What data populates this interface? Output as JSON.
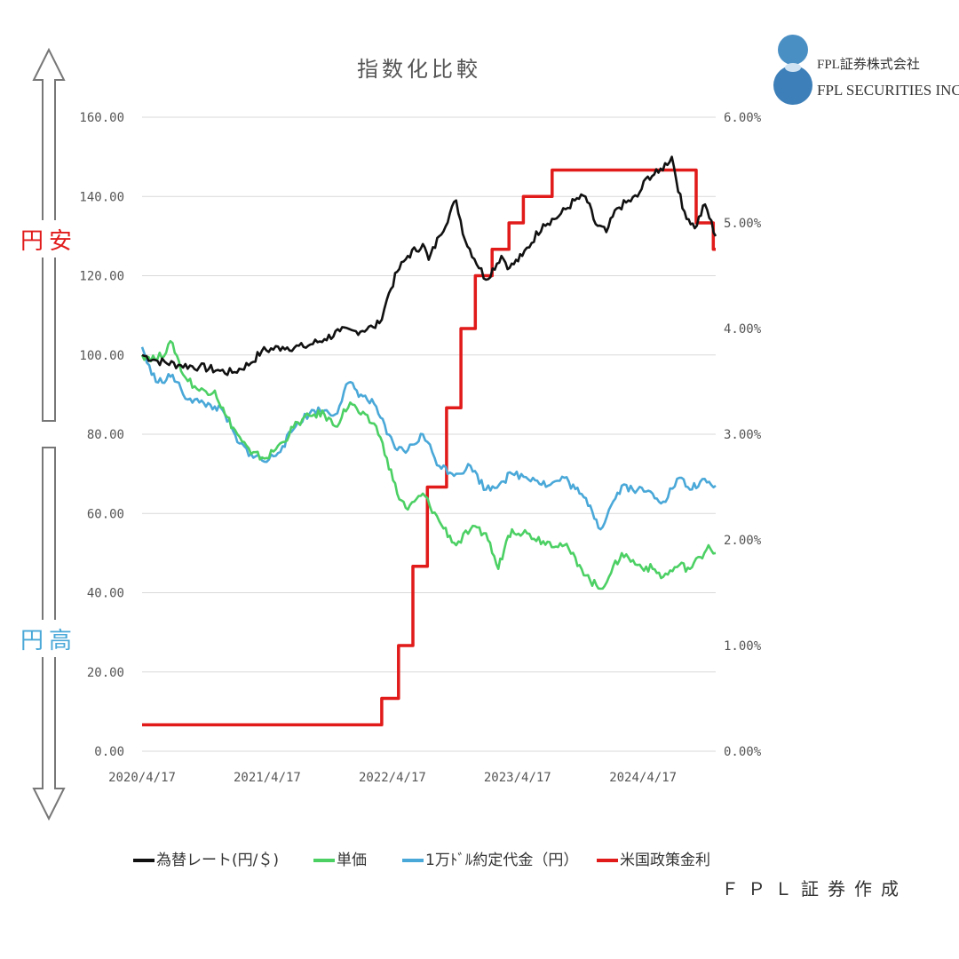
{
  "chart_data": {
    "type": "line",
    "title": "指数化比較",
    "x_ticks": [
      "2020/4/17",
      "2021/4/17",
      "2022/4/17",
      "2023/4/17",
      "2024/4/17"
    ],
    "x_range": [
      "2020/4/17",
      "2024/11/15"
    ],
    "y_left": {
      "range": [
        0,
        160
      ],
      "ticks": [
        "0.00",
        "20.00",
        "40.00",
        "60.00",
        "80.00",
        "100.00",
        "120.00",
        "140.00",
        "160.00"
      ]
    },
    "y_right": {
      "range": [
        0,
        6
      ],
      "ticks": [
        "0.00%",
        "1.00%",
        "2.00%",
        "3.00%",
        "4.00%",
        "5.00%",
        "6.00%"
      ]
    },
    "grid": true,
    "legend_position": "bottom",
    "series": [
      {
        "name": "為替レート(円/＄)",
        "color": "#111111",
        "axis": "left",
        "points": [
          [
            "2020/4/17",
            100
          ],
          [
            "2020/6/1",
            98.5
          ],
          [
            "2020/8/1",
            97.5
          ],
          [
            "2020/10/1",
            97
          ],
          [
            "2020/12/1",
            96
          ],
          [
            "2021/1/5",
            95.5
          ],
          [
            "2021/3/1",
            98
          ],
          [
            "2021/4/1",
            101
          ],
          [
            "2021/6/1",
            102
          ],
          [
            "2021/8/1",
            102
          ],
          [
            "2021/10/1",
            104
          ],
          [
            "2021/11/15",
            106
          ],
          [
            "2022/1/1",
            106
          ],
          [
            "2022/2/20",
            107
          ],
          [
            "2022/3/10",
            108
          ],
          [
            "2022/4/1",
            114
          ],
          [
            "2022/5/1",
            121
          ],
          [
            "2022/6/1",
            125
          ],
          [
            "2022/7/15",
            128
          ],
          [
            "2022/8/1",
            124
          ],
          [
            "2022/9/1",
            130
          ],
          [
            "2022/10/20",
            139
          ],
          [
            "2022/11/15",
            129
          ],
          [
            "2023/1/15",
            119
          ],
          [
            "2023/3/1",
            125
          ],
          [
            "2023/3/25",
            122
          ],
          [
            "2023/5/1",
            125
          ],
          [
            "2023/7/1",
            133
          ],
          [
            "2023/8/15",
            135
          ],
          [
            "2023/10/1",
            139
          ],
          [
            "2023/11/1",
            140
          ],
          [
            "2023/12/1",
            133
          ],
          [
            "2024/1/1",
            131
          ],
          [
            "2024/2/1",
            137
          ],
          [
            "2024/4/1",
            140
          ],
          [
            "2024/5/1",
            145
          ],
          [
            "2024/6/1",
            146
          ],
          [
            "2024/7/10",
            150
          ],
          [
            "2024/8/10",
            137
          ],
          [
            "2024/9/15",
            132
          ],
          [
            "2024/10/15",
            138
          ],
          [
            "2024/11/15",
            130
          ]
        ]
      },
      {
        "name": "単価",
        "color": "#4cd064",
        "axis": "left",
        "points": [
          [
            "2020/4/17",
            100
          ],
          [
            "2020/6/1",
            99
          ],
          [
            "2020/7/15",
            103
          ],
          [
            "2020/8/15",
            95
          ],
          [
            "2020/10/1",
            91
          ],
          [
            "2020/11/15",
            91
          ],
          [
            "2020/12/15",
            85
          ],
          [
            "2021/1/20",
            80
          ],
          [
            "2021/3/1",
            75
          ],
          [
            "2021/4/15",
            74
          ],
          [
            "2021/6/1",
            78
          ],
          [
            "2021/7/15",
            83
          ],
          [
            "2021/9/1",
            85
          ],
          [
            "2021/10/1",
            85
          ],
          [
            "2021/11/1",
            82
          ],
          [
            "2021/12/15",
            88
          ],
          [
            "2022/1/15",
            85
          ],
          [
            "2022/3/1",
            82
          ],
          [
            "2022/4/1",
            74
          ],
          [
            "2022/5/1",
            65
          ],
          [
            "2022/6/1",
            61
          ],
          [
            "2022/7/15",
            65
          ],
          [
            "2022/9/1",
            58
          ],
          [
            "2022/10/20",
            52
          ],
          [
            "2022/12/1",
            56
          ],
          [
            "2023/1/15",
            55
          ],
          [
            "2023/2/20",
            46
          ],
          [
            "2023/3/15",
            53
          ],
          [
            "2023/4/1",
            56
          ],
          [
            "2023/5/15",
            55
          ],
          [
            "2023/7/1",
            53
          ],
          [
            "2023/9/1",
            52
          ],
          [
            "2023/10/15",
            47
          ],
          [
            "2023/11/15",
            43
          ],
          [
            "2023/12/15",
            41
          ],
          [
            "2024/1/15",
            45
          ],
          [
            "2024/2/15",
            50
          ],
          [
            "2024/4/1",
            47
          ],
          [
            "2024/5/15",
            46
          ],
          [
            "2024/6/15",
            44
          ],
          [
            "2024/8/1",
            47
          ],
          [
            "2024/9/1",
            46
          ],
          [
            "2024/10/1",
            49
          ],
          [
            "2024/10/25",
            52
          ],
          [
            "2024/11/15",
            50
          ]
        ]
      },
      {
        "name": "1万ﾄﾞﾙ約定代金（円）",
        "color": "#4aa8d8",
        "axis": "left",
        "points": [
          [
            "2020/4/17",
            102
          ],
          [
            "2020/5/15",
            95
          ],
          [
            "2020/6/15",
            93
          ],
          [
            "2020/7/15",
            95
          ],
          [
            "2020/8/15",
            90
          ],
          [
            "2020/10/1",
            88
          ],
          [
            "2020/11/15",
            87
          ],
          [
            "2020/12/15",
            85
          ],
          [
            "2021/1/20",
            78
          ],
          [
            "2021/3/1",
            75
          ],
          [
            "2021/4/15",
            73
          ],
          [
            "2021/6/1",
            77
          ],
          [
            "2021/7/15",
            83
          ],
          [
            "2021/9/1",
            86
          ],
          [
            "2021/10/1",
            86
          ],
          [
            "2021/11/1",
            85
          ],
          [
            "2021/12/10",
            93
          ],
          [
            "2022/1/15",
            90
          ],
          [
            "2022/3/1",
            87
          ],
          [
            "2022/4/1",
            80
          ],
          [
            "2022/5/1",
            76
          ],
          [
            "2022/6/1",
            76
          ],
          [
            "2022/7/15",
            80
          ],
          [
            "2022/9/1",
            72
          ],
          [
            "2022/10/20",
            70
          ],
          [
            "2022/12/1",
            72
          ],
          [
            "2023/1/15",
            66
          ],
          [
            "2023/3/1",
            68
          ],
          [
            "2023/4/1",
            70
          ],
          [
            "2023/6/1",
            69
          ],
          [
            "2023/7/15",
            67
          ],
          [
            "2023/9/1",
            69
          ],
          [
            "2023/10/15",
            65
          ],
          [
            "2023/11/15",
            62
          ],
          [
            "2023/12/15",
            56
          ],
          [
            "2024/1/15",
            62
          ],
          [
            "2024/2/15",
            67
          ],
          [
            "2024/4/1",
            66
          ],
          [
            "2024/5/15",
            65
          ],
          [
            "2024/6/15",
            63
          ],
          [
            "2024/8/1",
            69
          ],
          [
            "2024/9/1",
            66
          ],
          [
            "2024/10/1",
            68
          ],
          [
            "2024/11/15",
            67
          ]
        ]
      },
      {
        "name": "米国政策金利",
        "color": "#e11a1a",
        "axis": "right",
        "step": true,
        "points": [
          [
            "2020/4/17",
            0.25
          ],
          [
            "2022/3/17",
            0.5
          ],
          [
            "2022/5/5",
            1.0
          ],
          [
            "2022/6/16",
            1.75
          ],
          [
            "2022/7/28",
            2.5
          ],
          [
            "2022/9/22",
            3.25
          ],
          [
            "2022/11/3",
            4.0
          ],
          [
            "2022/12/15",
            4.5
          ],
          [
            "2023/2/2",
            4.75
          ],
          [
            "2023/3/23",
            5.0
          ],
          [
            "2023/5/4",
            5.25
          ],
          [
            "2023/7/27",
            5.5
          ],
          [
            "2024/9/19",
            5.0
          ],
          [
            "2024/11/8",
            4.75
          ]
        ]
      }
    ]
  },
  "side_labels": {
    "upper": "円安",
    "lower": "円高"
  },
  "colors": {
    "upper_label": "#e11a1a",
    "lower_label": "#4aa8d8",
    "arrow": "#777777",
    "grid": "#d9d9d9"
  },
  "logo": {
    "name_jp": "FPL証券株式会社",
    "name_en": "FPL SECURITIES INC."
  },
  "credit": "ＦＰＬ証券作成"
}
